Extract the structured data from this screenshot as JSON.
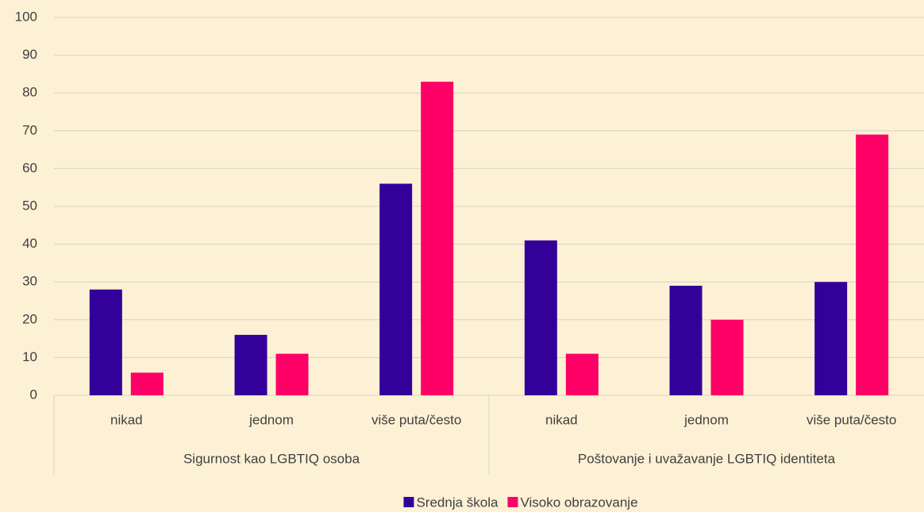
{
  "chart_data": {
    "type": "bar",
    "categories": [
      "nikad",
      "jednom",
      "više puta/često",
      "nikad",
      "jednom",
      "više puta/često"
    ],
    "groups": [
      "Sigurnost kao LGBTIQ osoba",
      "Poštovanje i uvažavanje LGBTIQ identiteta"
    ],
    "series": [
      {
        "name": "Srednja škola",
        "color": "#330099",
        "values": [
          28,
          16,
          56,
          41,
          29,
          30
        ]
      },
      {
        "name": "Visoko obrazovanje",
        "color": "#ff0066",
        "values": [
          6,
          11,
          83,
          11,
          20,
          69
        ]
      }
    ],
    "ylim": [
      0,
      100
    ],
    "yticks": [
      0,
      10,
      20,
      30,
      40,
      50,
      60,
      70,
      80,
      90,
      100
    ],
    "grid": true,
    "legend": "bottom"
  }
}
